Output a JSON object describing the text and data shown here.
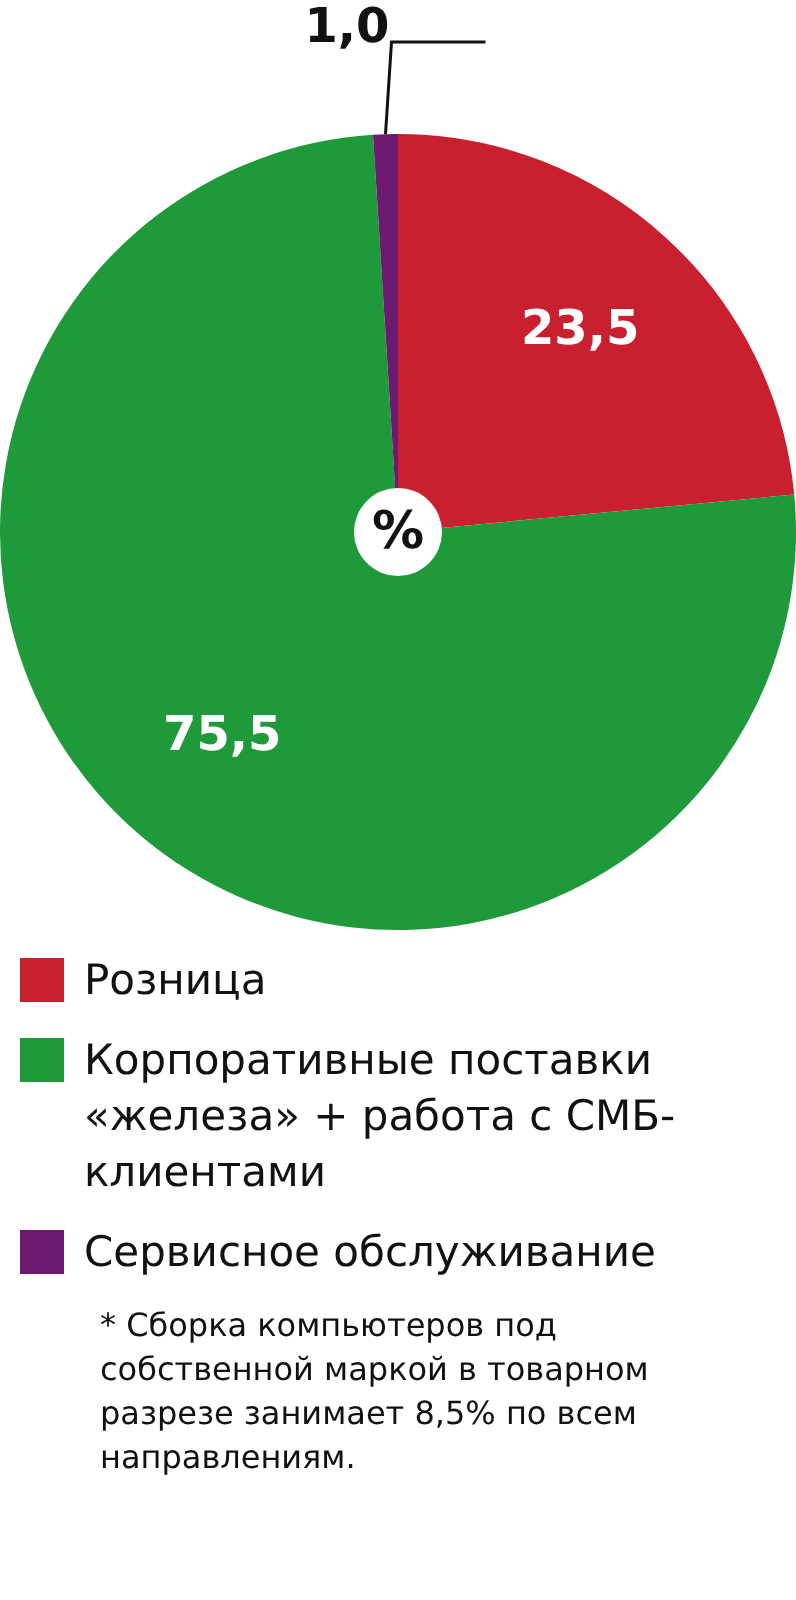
{
  "chart_data": {
    "type": "pie",
    "categories": [
      "Розница",
      "Корпоративные поставки «железа» + работа с СМБ-клиентами",
      "Сервисное обслуживание"
    ],
    "values": [
      23.5,
      75.5,
      1.0
    ],
    "colors": [
      "#c8202f",
      "#1f9a3a",
      "#6b1a70"
    ],
    "value_labels": [
      "23,5",
      "75,5",
      "1,0"
    ],
    "legend": "bottom",
    "annotations": [
      "%",
      "* Сборка компьютеров под собственной маркой в товарном разрезе занимает 8,5% по всем направлениям."
    ]
  }
}
